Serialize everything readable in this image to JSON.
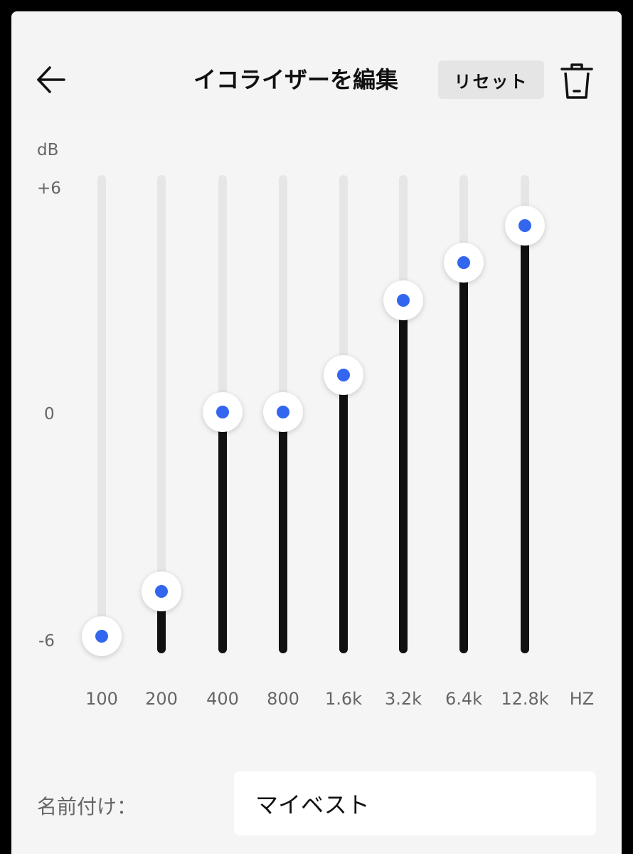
{
  "header": {
    "title": "イコライザーを編集",
    "reset_label": "リセット",
    "back_icon": "arrow-left-icon",
    "delete_icon": "trash-icon"
  },
  "equalizer": {
    "unit_label": "dB",
    "y_ticks": [
      "+6",
      "0",
      "-6"
    ],
    "freq_unit": "HZ",
    "range": [
      -6,
      6
    ],
    "bands": [
      {
        "label": "100",
        "gain": -6.0
      },
      {
        "label": "200",
        "gain": -4.8
      },
      {
        "label": "400",
        "gain": 0.0
      },
      {
        "label": "800",
        "gain": 0.0
      },
      {
        "label": "1.6k",
        "gain": 1.0
      },
      {
        "label": "3.2k",
        "gain": 3.0
      },
      {
        "label": "6.4k",
        "gain": 4.0
      },
      {
        "label": "12.8k",
        "gain": 5.0
      }
    ],
    "colors": {
      "knob_dot": "#3366ee",
      "fill": "#111111",
      "track": "#e6e6e7"
    }
  },
  "name_field": {
    "label": "名前付け：",
    "value": "マイベスト"
  }
}
